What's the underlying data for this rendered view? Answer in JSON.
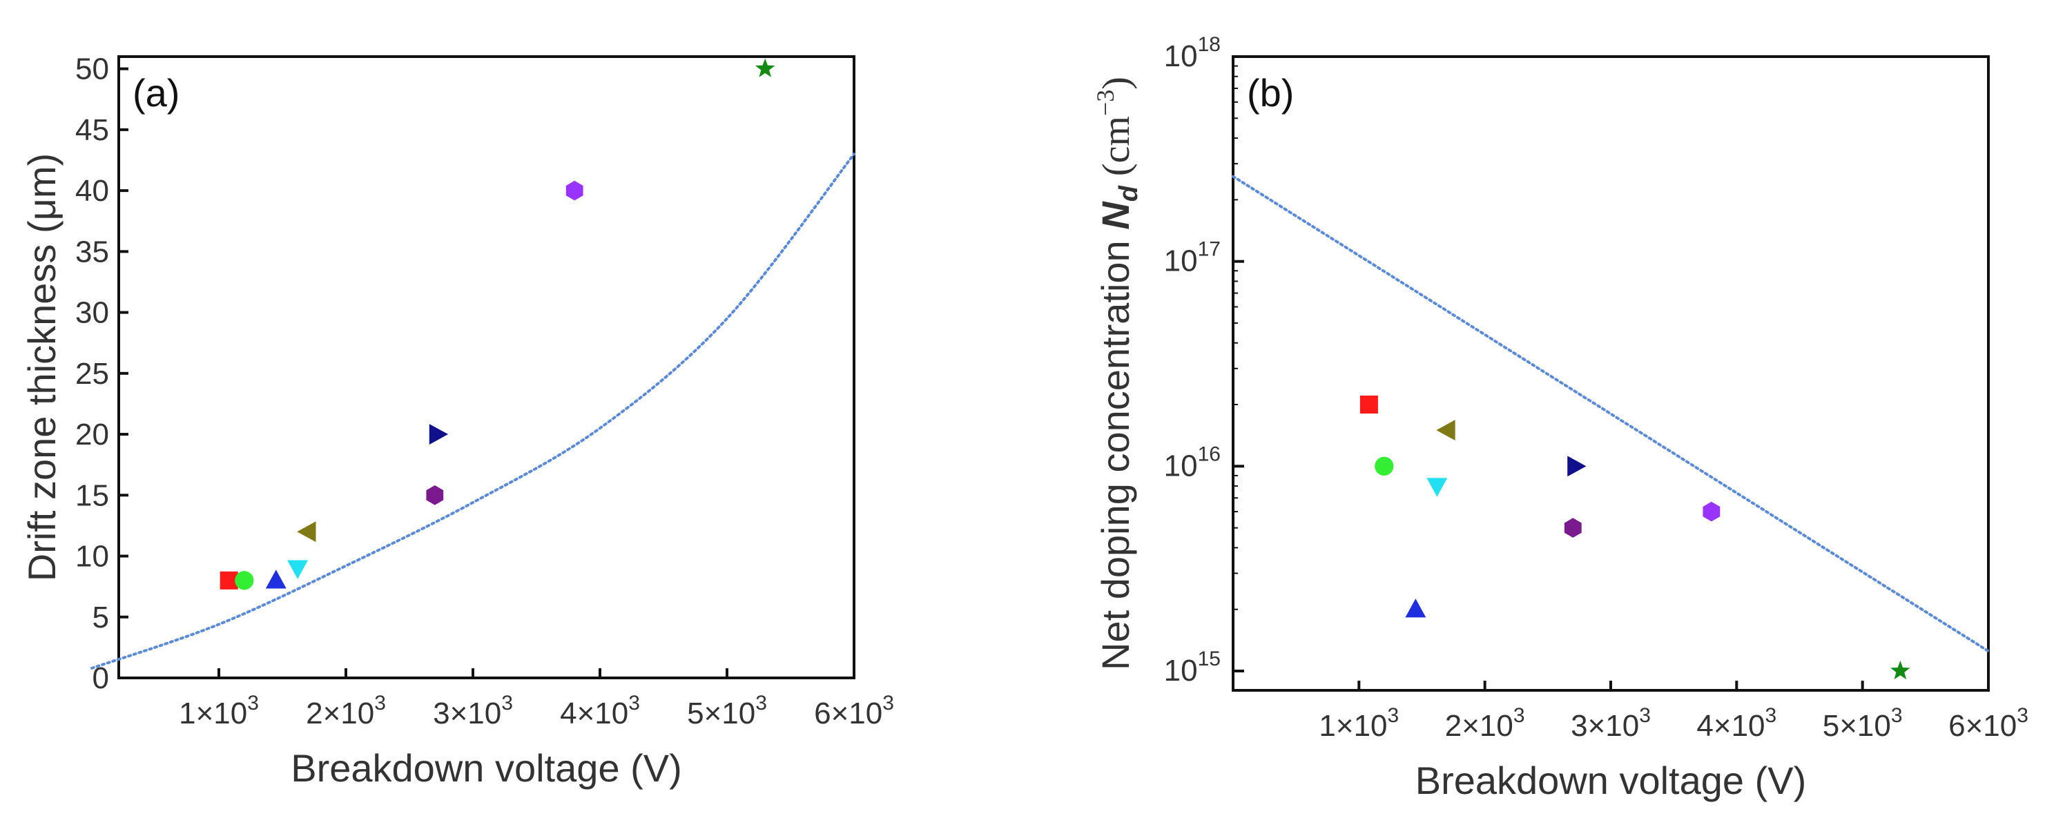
{
  "chart_data": [
    {
      "type": "scatter",
      "panel_label": "(a)",
      "xlabel": "Breakdown voltage (V)",
      "ylabel": "Drift zone thickness (μm)",
      "xlim": [
        0,
        6000
      ],
      "ylim": [
        0,
        51
      ],
      "x_ticks": [
        {
          "value": 1000,
          "base": "1×10",
          "exp": "3"
        },
        {
          "value": 2000,
          "base": "2×10",
          "exp": "3"
        },
        {
          "value": 3000,
          "base": "3×10",
          "exp": "3"
        },
        {
          "value": 4000,
          "base": "4×10",
          "exp": "3"
        },
        {
          "value": 5000,
          "base": "5×10",
          "exp": "3"
        },
        {
          "value": 6000,
          "base": "6×10",
          "exp": "3"
        }
      ],
      "y_ticks": [
        0,
        5,
        10,
        15,
        20,
        25,
        30,
        35,
        40,
        45,
        50
      ],
      "grid": false,
      "points": [
        {
          "x": 1080,
          "y": 8,
          "marker": "square",
          "color": "#ff1a1a"
        },
        {
          "x": 1200,
          "y": 8,
          "marker": "circle",
          "color": "#33ee33"
        },
        {
          "x": 1450,
          "y": 8,
          "marker": "triangle-up",
          "color": "#1f2fe0"
        },
        {
          "x": 1620,
          "y": 9,
          "marker": "triangle-down",
          "color": "#22e0f2"
        },
        {
          "x": 1700,
          "y": 12,
          "marker": "triangle-left",
          "color": "#7f7a16"
        },
        {
          "x": 2700,
          "y": 15,
          "marker": "hexagon",
          "color": "#7a1a8e"
        },
        {
          "x": 2720,
          "y": 20,
          "marker": "triangle-right",
          "color": "#10108c"
        },
        {
          "x": 3800,
          "y": 40,
          "marker": "hexagon",
          "color": "#9933ff"
        },
        {
          "x": 5300,
          "y": 50,
          "marker": "star",
          "color": "#138a13"
        }
      ],
      "curve": {
        "style": "dotted",
        "color": "#5b8ad6",
        "x": [
          0,
          1000,
          2000,
          3000,
          4000,
          5000,
          6000
        ],
        "y": [
          0.8,
          4.4,
          9.2,
          14.4,
          20.5,
          29.5,
          43.0
        ]
      }
    },
    {
      "type": "scatter",
      "panel_label": "(b)",
      "xlabel": "Breakdown voltage (V)",
      "ylabel_text": "Net doping concentration ",
      "ylabel_symbol": "N",
      "ylabel_sub": "d",
      "ylabel_unit": " (cm",
      "ylabel_unit_exp": "−3",
      "ylabel_close": ")",
      "xlim": [
        0,
        6000
      ],
      "yscale": "log",
      "ylim": [
        1000000000000000.0,
        1e+18
      ],
      "x_ticks": [
        {
          "value": 1000,
          "base": "1×10",
          "exp": "3"
        },
        {
          "value": 2000,
          "base": "2×10",
          "exp": "3"
        },
        {
          "value": 3000,
          "base": "3×10",
          "exp": "3"
        },
        {
          "value": 4000,
          "base": "4×10",
          "exp": "3"
        },
        {
          "value": 5000,
          "base": "5×10",
          "exp": "3"
        },
        {
          "value": 6000,
          "base": "6×10",
          "exp": "3"
        }
      ],
      "y_ticks": [
        {
          "value": 1000000000000000.0,
          "base": "10",
          "exp": "15"
        },
        {
          "value": 1e+16,
          "base": "10",
          "exp": "16"
        },
        {
          "value": 1e+17,
          "base": "10",
          "exp": "17"
        },
        {
          "value": 1e+18,
          "base": "10",
          "exp": "18"
        }
      ],
      "grid": false,
      "points": [
        {
          "x": 1080,
          "y": 2e+16,
          "marker": "square",
          "color": "#ff1a1a"
        },
        {
          "x": 1200,
          "y": 1e+16,
          "marker": "circle",
          "color": "#33ee33"
        },
        {
          "x": 1450,
          "y": 2000000000000000.0,
          "marker": "triangle-up",
          "color": "#1f2fe0"
        },
        {
          "x": 1620,
          "y": 8000000000000000.0,
          "marker": "triangle-down",
          "color": "#22e0f2"
        },
        {
          "x": 1700,
          "y": 1.5e+16,
          "marker": "triangle-left",
          "color": "#7f7a16"
        },
        {
          "x": 2700,
          "y": 5000000000000000.0,
          "marker": "hexagon",
          "color": "#7a1a8e"
        },
        {
          "x": 2720,
          "y": 1e+16,
          "marker": "triangle-right",
          "color": "#10108c"
        },
        {
          "x": 3800,
          "y": 6000000000000000.0,
          "marker": "hexagon",
          "color": "#9933ff"
        },
        {
          "x": 5300,
          "y": 1000000000000000.0,
          "marker": "star",
          "color": "#138a13"
        }
      ],
      "curve": {
        "style": "dotted",
        "color": "#5b8ad6",
        "x": [
          0,
          6000
        ],
        "y": [
          2.6e+17,
          1250000000000000.0
        ]
      }
    }
  ]
}
